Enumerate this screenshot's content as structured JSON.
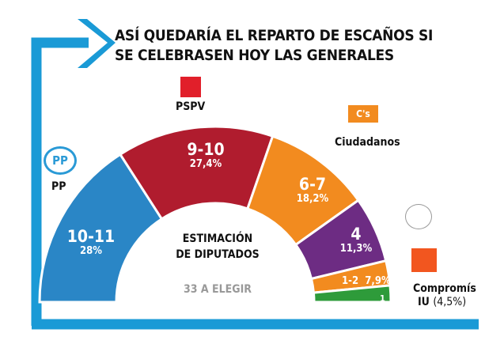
{
  "title": [
    "ASÍ QUEDARÍA EL REPARTO DE ESCAÑOS SI",
    "SE CELEBRASEN HOY LAS GENERALES"
  ],
  "center": {
    "line1": "ESTIMACIÓN",
    "line2": "DE DIPUTADOS",
    "total": "33 A ELEGIR"
  },
  "frame_color": "#1a9ad6",
  "chart_data": {
    "type": "pie",
    "variant": "half-donut",
    "total_seats": 33,
    "series": [
      {
        "name": "PP",
        "seats": "10-11",
        "pct": "28%",
        "color": "#2a86c6",
        "logo": "pp-logo-icon"
      },
      {
        "name": "PSPV",
        "seats": "9-10",
        "pct": "27,4%",
        "color": "#b01c2e",
        "logo": "pspv-logo-icon"
      },
      {
        "name": "Ciudadanos",
        "seats": "6-7",
        "pct": "18,2%",
        "color": "#f28b1f",
        "logo": "ciudadanos-logo-icon"
      },
      {
        "name": "",
        "seats": "4",
        "pct": "11,3%",
        "color": "#6d2c83",
        "logo": "podemos-logo-icon"
      },
      {
        "name": "Compromís",
        "seats": "1-2",
        "pct": "7,9%",
        "color": "#f28b1f",
        "logo": "compromis-logo-icon"
      },
      {
        "name": "IU",
        "seats": "1",
        "pct": "(4,5%)",
        "color": "#2e9b3a"
      }
    ]
  }
}
